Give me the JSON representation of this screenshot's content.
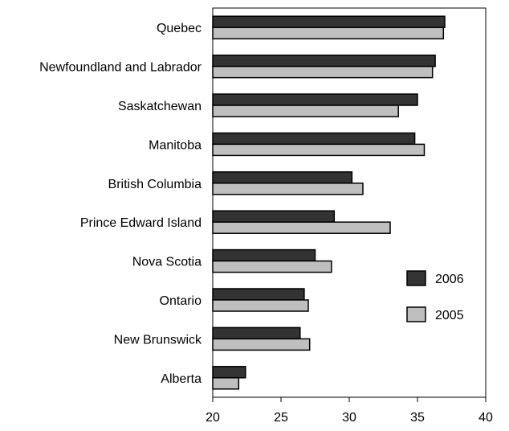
{
  "chart_data": {
    "type": "bar",
    "orientation": "horizontal",
    "categories": [
      "Quebec",
      "Newfoundland and Labrador",
      "Saskatchewan",
      "Manitoba",
      "British Columbia",
      "Prince Edward Island",
      "Nova Scotia",
      "Ontario",
      "New Brunswick",
      "Alberta"
    ],
    "series": [
      {
        "name": "2006",
        "color": "#333333",
        "values": [
          37.0,
          36.3,
          35.0,
          34.8,
          30.2,
          28.9,
          27.5,
          26.7,
          26.4,
          22.4
        ]
      },
      {
        "name": "2005",
        "color": "#bfbfbf",
        "values": [
          36.9,
          36.1,
          33.6,
          35.5,
          31.0,
          33.0,
          28.7,
          27.0,
          27.1,
          21.9
        ]
      }
    ],
    "xlim": [
      20,
      40
    ],
    "xticks": [
      "20",
      "25",
      "30",
      "35",
      "40"
    ],
    "title": "",
    "xlabel": "",
    "ylabel": "",
    "grid": false,
    "legend_position": "right"
  }
}
